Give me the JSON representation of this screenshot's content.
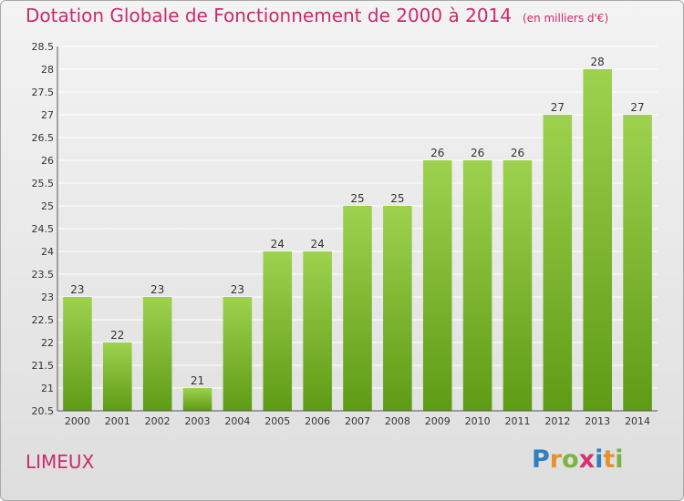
{
  "header": {
    "title": "Dotation Globale de Fonctionnement de 2000 à 2014",
    "unit": "(en milliers d'€)"
  },
  "footer": {
    "place": "LIMEUX",
    "brand": [
      "P",
      "r",
      "o",
      "x",
      "i",
      "t",
      "i"
    ]
  },
  "colors": {
    "title": "#cc2a6b",
    "bar_top": "#9ed24e",
    "bar_bottom": "#5e9b14",
    "grid": "#ffffff"
  },
  "chart_data": {
    "type": "bar",
    "title": "Dotation Globale de Fonctionnement de 2000 à 2014",
    "xlabel": "",
    "ylabel": "",
    "categories": [
      "2000",
      "2001",
      "2002",
      "2003",
      "2004",
      "2005",
      "2006",
      "2007",
      "2008",
      "2009",
      "2010",
      "2011",
      "2012",
      "2013",
      "2014"
    ],
    "values": [
      23,
      22,
      23,
      21,
      23,
      24,
      24,
      25,
      25,
      26,
      26,
      26,
      27,
      28,
      27
    ],
    "value_labels": [
      "23",
      "22",
      "23",
      "21",
      "23",
      "24",
      "24",
      "25",
      "25",
      "26",
      "26",
      "26",
      "27",
      "28",
      "27"
    ],
    "ylim": [
      20.5,
      28.5
    ],
    "yticks": [
      "20.5",
      "21",
      "21.5",
      "22",
      "22.5",
      "23",
      "23.5",
      "24",
      "24.5",
      "25",
      "25.5",
      "26",
      "26.5",
      "27",
      "27.5",
      "28",
      "28.5"
    ],
    "grid": true,
    "legend": "none"
  }
}
